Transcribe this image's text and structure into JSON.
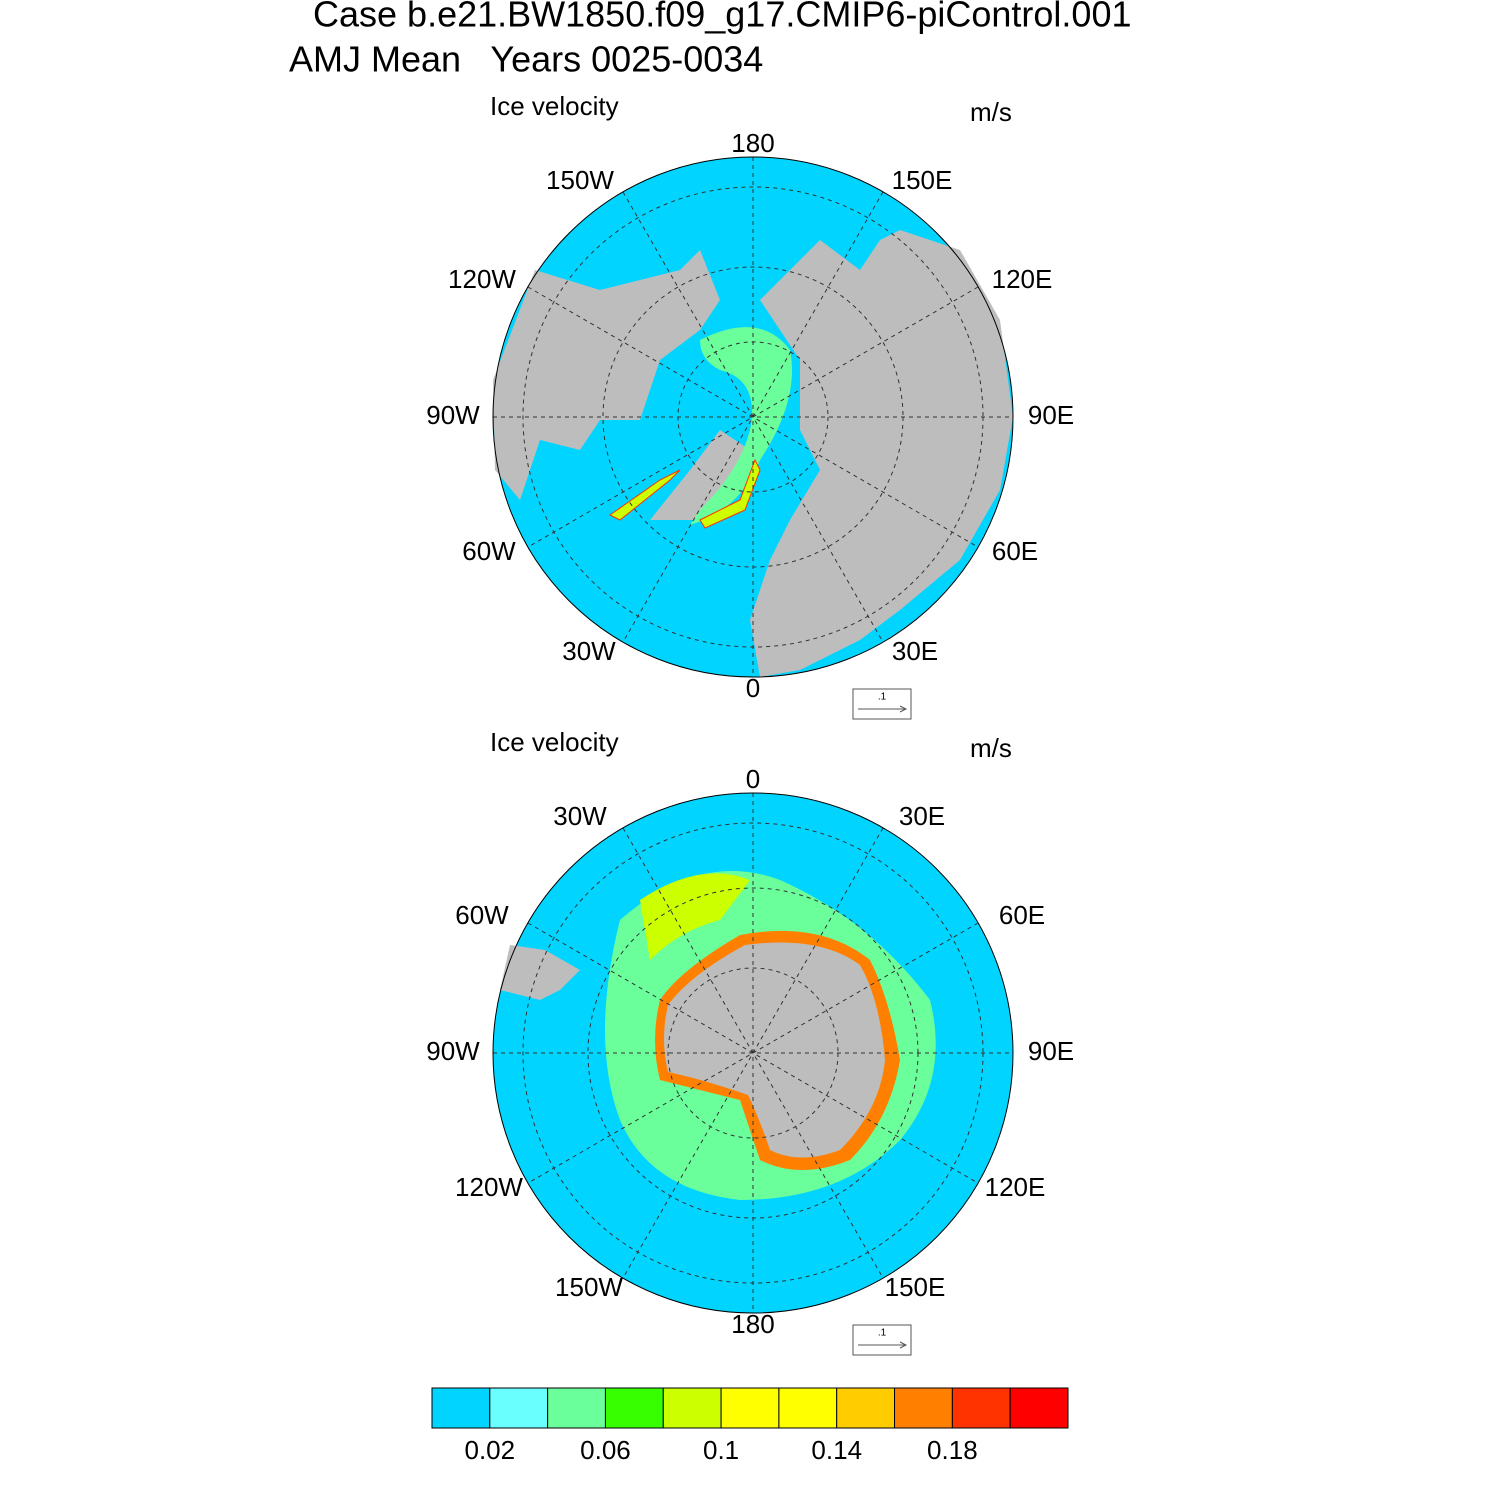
{
  "header": {
    "title": "Case b.e21.BW1850.f09_g17.CMIP6-piControl.001",
    "subtitle": "AMJ Mean   Years 0025-0034"
  },
  "panels": [
    {
      "title": "Ice velocity",
      "units": "m/s",
      "ref_vector": ".1",
      "lon_labels": [
        "180",
        "150W",
        "150E",
        "120W",
        "120E",
        "90W",
        "90E",
        "60W",
        "60E",
        "30W",
        "30E",
        "0"
      ]
    },
    {
      "title": "Ice velocity",
      "units": "m/s",
      "ref_vector": ".1",
      "lon_labels": [
        "0",
        "30W",
        "30E",
        "60W",
        "60E",
        "90W",
        "90E",
        "120W",
        "120E",
        "150W",
        "150E",
        "180"
      ]
    }
  ],
  "colorbar": {
    "colors": [
      "#00d4ff",
      "#6affff",
      "#6aff9a",
      "#38ff00",
      "#ccff00",
      "#ffff00",
      "#ffff00",
      "#ffcc00",
      "#ff8000",
      "#ff3300",
      "#ff0000"
    ],
    "lim": [
      0,
      0.22
    ],
    "ticks": [
      0.02,
      0.06,
      0.1,
      0.14,
      0.18
    ]
  }
}
